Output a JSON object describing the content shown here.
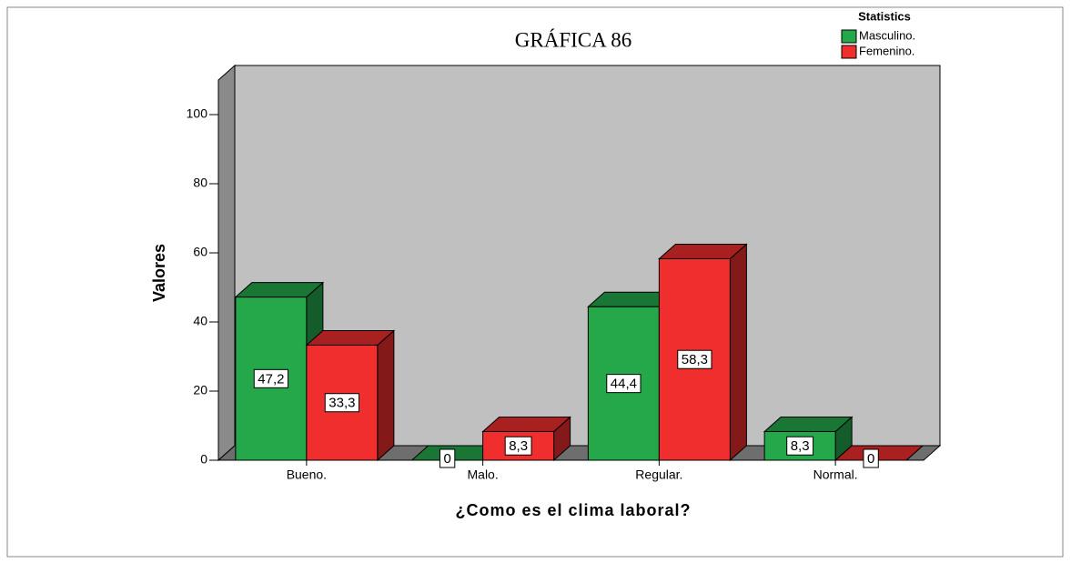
{
  "chart_data": {
    "type": "bar3d",
    "title": "GRÁFICA 86",
    "x_label": "¿Como es el clima laboral?",
    "y_label": "Valores",
    "legend_title": "Statistics",
    "legend": "top-right",
    "categories": [
      "Bueno.",
      "Malo.",
      "Regular.",
      "Normal."
    ],
    "series": [
      {
        "name": "Masculino.",
        "color": "#24a84a",
        "values": [
          47.2,
          0,
          44.4,
          8.3
        ],
        "value_labels": [
          "47,2",
          "0",
          "44,4",
          "8,3"
        ]
      },
      {
        "name": "Femenino.",
        "color": "#f02e2e",
        "values": [
          33.3,
          8.3,
          58.3,
          0
        ],
        "value_labels": [
          "33,3",
          "8,3",
          "58,3",
          "0"
        ]
      }
    ],
    "ylim": [
      0,
      110
    ],
    "yticks": [
      0,
      20,
      40,
      60,
      80,
      100
    ]
  }
}
